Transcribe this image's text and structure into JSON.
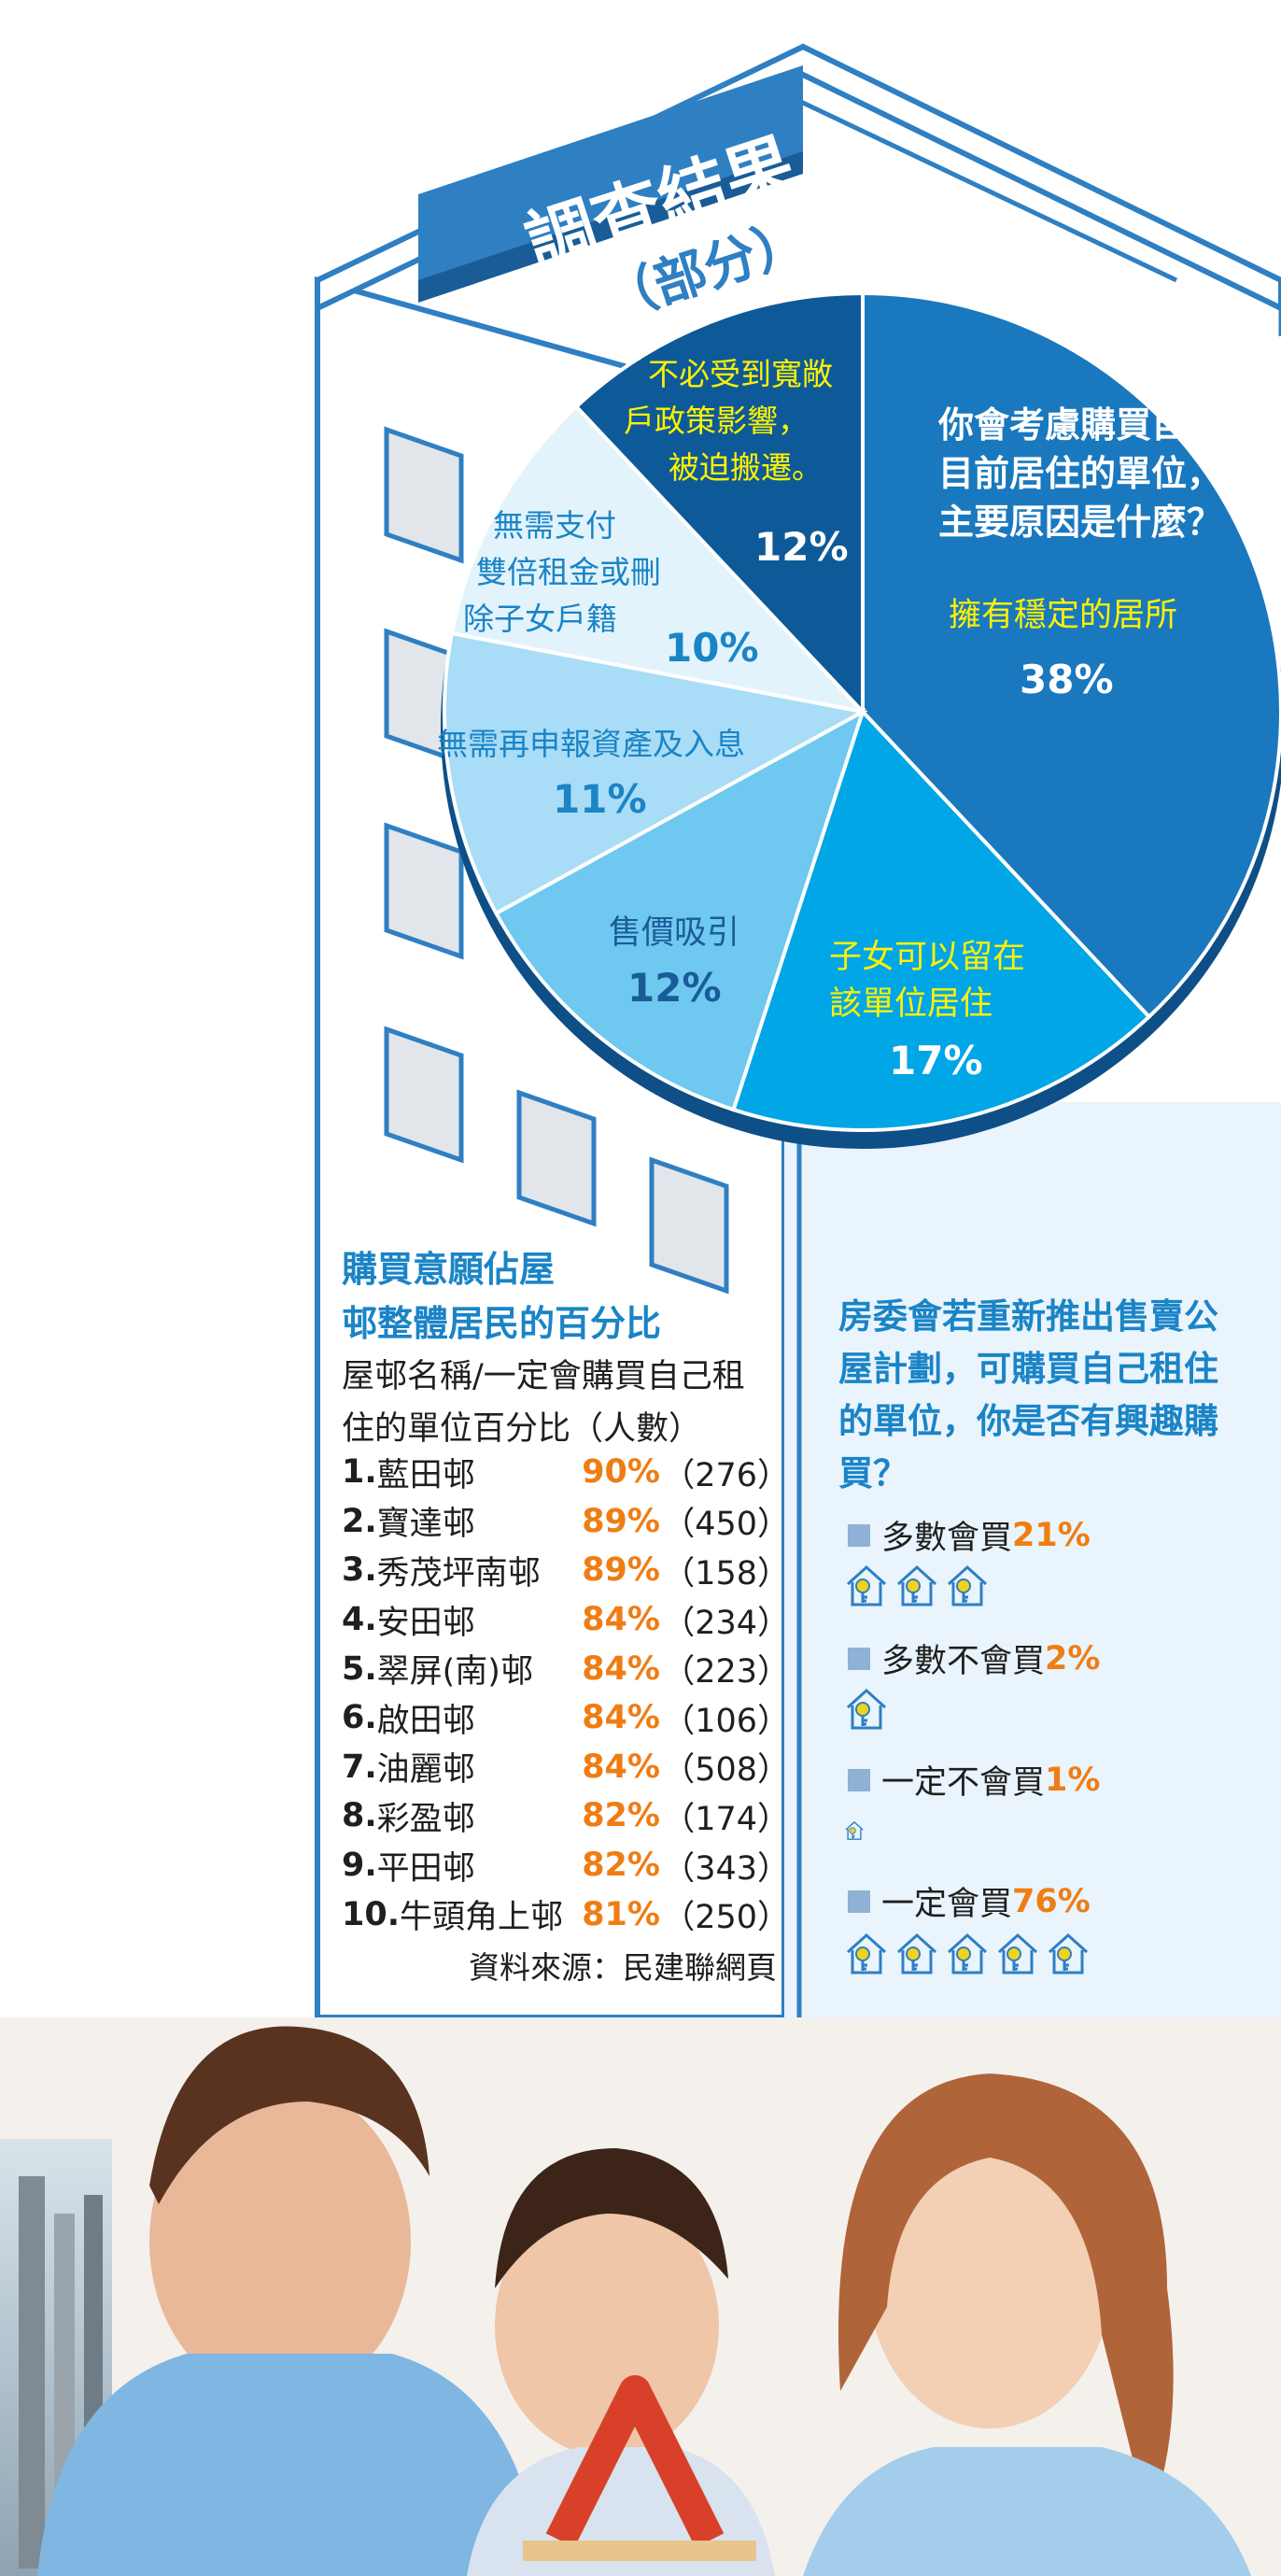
{
  "header": {
    "title": "調查結果",
    "subtitle": "（部分）"
  },
  "pie_question": "你會考慮購買自己目前居住的單位，主要原因是什麼？",
  "chart_data": {
    "type": "pie",
    "question": "你會考慮購買自己目前居住的單位，主要原因是什麼？",
    "slices": [
      {
        "label": "擁有穩定的居所",
        "value": 38,
        "pct_label": "38%",
        "color": "#1a78be"
      },
      {
        "label": "子女可以留在該單位居住",
        "value": 17,
        "pct_label": "17%",
        "color": "#00a6e6"
      },
      {
        "label": "售價吸引",
        "value": 12,
        "pct_label": "12%",
        "color": "#6ec8f0"
      },
      {
        "label": "無需再申報資產及入息",
        "value": 11,
        "pct_label": "11%",
        "color": "#a9dcf6"
      },
      {
        "label": "無需支付雙倍租金或刪除子女戶籍",
        "value": 10,
        "pct_label": "10%",
        "color": "#e3f3fc"
      },
      {
        "label": "不必受到寬敞戶政策影響，被迫搬遷。",
        "value": 12,
        "pct_label": "12%",
        "color": "#0e5a98"
      }
    ]
  },
  "pie_labels": {
    "s1": [
      "擁有穩定的居所"
    ],
    "s2": [
      "子女可以留在",
      "該單位居住"
    ],
    "s3": [
      "售價吸引"
    ],
    "s4": [
      "無需再申報資產及入息"
    ],
    "s5": [
      "無需支付",
      "雙倍租金或刪",
      "除子女戶籍"
    ],
    "s6": [
      "不必受到寬敞",
      "戶政策影響，",
      "被迫搬遷。"
    ],
    "q": [
      "你會考慮購買自己",
      "目前居住的單位，",
      "主要原因是什麼？"
    ]
  },
  "ranking": {
    "title_lines": [
      "購買意願佔屋",
      "邨整體居民的百分比"
    ],
    "sub_lines": [
      "屋邨名稱/一定會購買自己租",
      "住的單位百分比（人數）"
    ],
    "rows": [
      {
        "no": "1.",
        "name": "藍田邨",
        "pct": "90%",
        "count": "（276）"
      },
      {
        "no": "2.",
        "name": "寶達邨",
        "pct": "89%",
        "count": "（450）"
      },
      {
        "no": "3.",
        "name": "秀茂坪南邨",
        "pct": "89%",
        "count": "（158）"
      },
      {
        "no": "4.",
        "name": "安田邨",
        "pct": "84%",
        "count": "（234）"
      },
      {
        "no": "5.",
        "name": "翠屏(南)邨",
        "pct": "84%",
        "count": "（223）"
      },
      {
        "no": "6.",
        "name": "啟田邨",
        "pct": "84%",
        "count": "（106）"
      },
      {
        "no": "7.",
        "name": "油麗邨",
        "pct": "84%",
        "count": "（508）"
      },
      {
        "no": "8.",
        "name": "彩盈邨",
        "pct": "82%",
        "count": "（174）"
      },
      {
        "no": "9.",
        "name": "平田邨",
        "pct": "82%",
        "count": "（343）"
      },
      {
        "no": "10.",
        "name": "牛頭角上邨",
        "pct": "81%",
        "count": "（250）"
      }
    ],
    "source": "資料來源：民建聯網頁"
  },
  "interest": {
    "question_lines": [
      "房委會若重新推出售賣公",
      "屋計劃，可購買自己租住",
      "的單位，你是否有興趣購",
      "買？"
    ],
    "options": [
      {
        "label": "多數會買",
        "pct": "21%",
        "houses": 3
      },
      {
        "label": "多數不會買",
        "pct": "2%",
        "houses": 1
      },
      {
        "label": "一定不會買",
        "pct": "1%",
        "houses": 0.5
      },
      {
        "label": "一定會買",
        "pct": "76%",
        "houses": 5
      }
    ]
  },
  "colors": {
    "accent_blue": "#1a84c6",
    "highlight_orange": "#ef7d14",
    "building_blue": "#2f7fc3",
    "label_yellow": "#fff200"
  }
}
